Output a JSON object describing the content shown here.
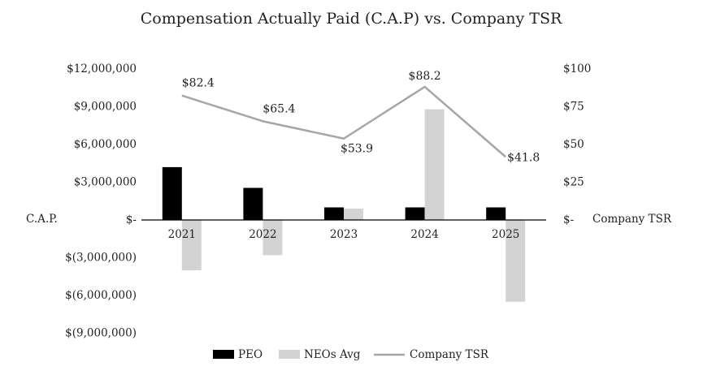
{
  "chart_data": {
    "type": "bar",
    "title": "Compensation Actually Paid (C.A.P) vs. Company TSR",
    "categories": [
      "2021",
      "2022",
      "2023",
      "2024",
      "2025"
    ],
    "ylabel": "C.A.P.",
    "y2label": "Company TSR",
    "ylim": [
      -9000000,
      12000000
    ],
    "y2lim": [
      -50,
      100
    ],
    "yticks": [
      "$12,000,000",
      "$9,000,000",
      "$6,000,000",
      "$3,000,000",
      "$-",
      "$(3,000,000)",
      "$(6,000,000)",
      "$(9,000,000)"
    ],
    "y2ticks": [
      "$100",
      "$75",
      "$50",
      "$25",
      "$-"
    ],
    "grid": false,
    "legend_position": "bottom",
    "series": [
      {
        "name": "PEO",
        "kind": "bar",
        "color": "#000000",
        "values": [
          4200000,
          2550000,
          1000000,
          1000000,
          1000000
        ]
      },
      {
        "name": "NEOs Avg",
        "kind": "bar",
        "color": "#d3d3d3",
        "values": [
          -4000000,
          -2800000,
          900000,
          8800000,
          -6500000
        ]
      },
      {
        "name": "Company TSR",
        "kind": "line",
        "axis": "right",
        "color": "#a6a6a6",
        "values": [
          82.4,
          65.4,
          53.9,
          88.2,
          41.8
        ],
        "labels": [
          "$82.4",
          "$65.4",
          "$53.9",
          "$88.2",
          "$41.8"
        ]
      }
    ]
  }
}
